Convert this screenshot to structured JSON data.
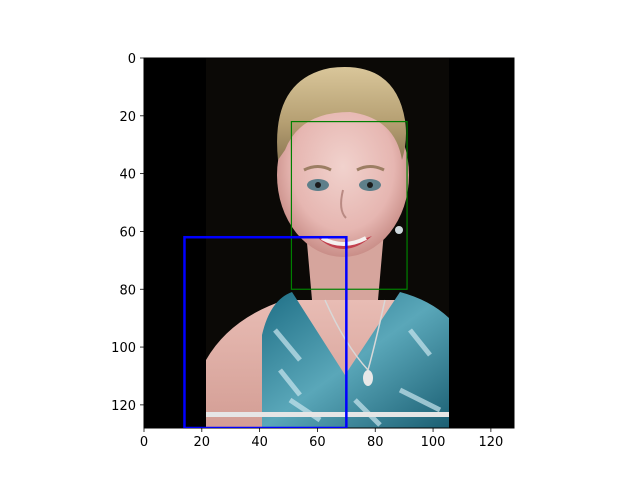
{
  "chart_data": {
    "type": "image",
    "title": "",
    "xlabel": "",
    "ylabel": "",
    "xlim": [
      0,
      128
    ],
    "ylim": [
      128,
      0
    ],
    "xticks": [
      0,
      20,
      40,
      60,
      80,
      100,
      120
    ],
    "yticks": [
      0,
      20,
      40,
      60,
      80,
      100,
      120
    ],
    "image": {
      "description": "Photo of a smiling blonde woman wearing a blue and white patterned halter top on a dark background",
      "content_extent_x": [
        21,
        106
      ]
    },
    "boxes": [
      {
        "name": "face",
        "color": "#008000",
        "x0": 51,
        "y0": 22,
        "x1": 91,
        "y1": 80
      },
      {
        "name": "lower-left",
        "color": "#0000ff",
        "x0": 14,
        "y0": 62,
        "x1": 70,
        "y1": 128
      }
    ]
  }
}
